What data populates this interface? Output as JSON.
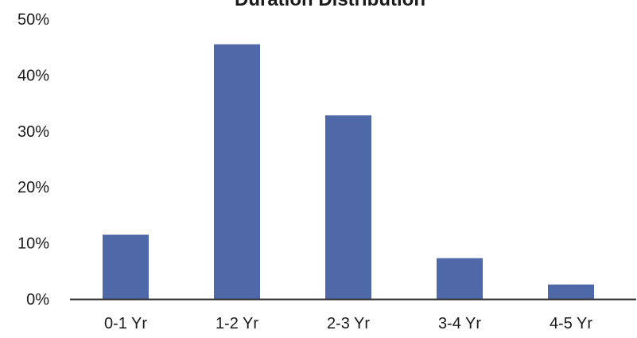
{
  "chart_data": {
    "type": "bar",
    "title": "Duration Distribution",
    "categories": [
      "0-1 Yr",
      "1-2 Yr",
      "2-3 Yr",
      "3-4 Yr",
      "4-5 Yr"
    ],
    "values": [
      11.5,
      45.5,
      32.8,
      7.3,
      2.6
    ],
    "yticks": [
      "0%",
      "10%",
      "20%",
      "30%",
      "40%",
      "50%"
    ],
    "ylim": [
      0,
      50
    ],
    "grid": false,
    "bar_color": "#4f69a8",
    "axis_color": "#333333"
  }
}
